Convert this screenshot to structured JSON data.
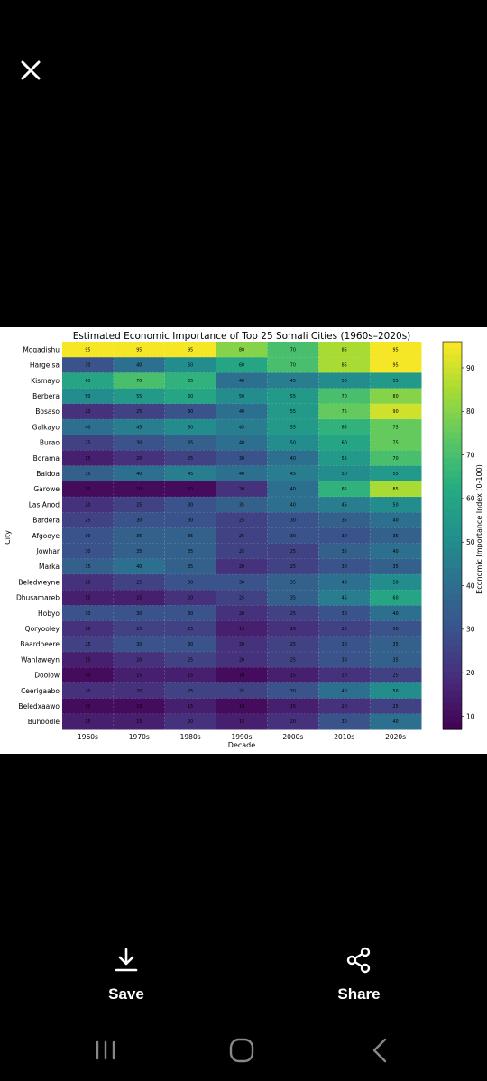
{
  "viewer": {
    "close_icon": "close-icon",
    "actions": [
      {
        "label": "Save",
        "icon": "download-icon"
      },
      {
        "label": "Share",
        "icon": "share-icon"
      }
    ]
  },
  "navbar": {
    "recents_icon": "recents-icon",
    "home_icon": "home-icon",
    "back_icon": "back-icon"
  },
  "chart_data": {
    "type": "heatmap",
    "title": "Estimated Economic Importance of Top 25 Somali Cities (1960s–2020s)",
    "xlabel": "Decade",
    "ylabel": "City",
    "colorbar_label": "Economic Importance Index (0-100)",
    "colorbar_ticks": [
      10,
      20,
      30,
      40,
      50,
      60,
      70,
      80,
      90
    ],
    "colormap": "viridis",
    "vmin": 7,
    "vmax": 96,
    "x": [
      "1960s",
      "1970s",
      "1980s",
      "1990s",
      "2000s",
      "2010s",
      "2020s"
    ],
    "y": [
      "Mogadishu",
      "Hargeisa",
      "Kismayo",
      "Berbera",
      "Bosaso",
      "Galkayo",
      "Burao",
      "Borama",
      "Baidoa",
      "Garowe",
      "Las Anod",
      "Bardera",
      "Afgooye",
      "Jowhar",
      "Marka",
      "Beledweyne",
      "Dhusamareb",
      "Hobyo",
      "Qoryooley",
      "Baardheere",
      "Wanlaweyn",
      "Doolow",
      "Ceerigaabo",
      "Beledxaawo",
      "Buhoodle"
    ],
    "values": [
      [
        95,
        95,
        95,
        80,
        70,
        85,
        95
      ],
      [
        30,
        40,
        50,
        60,
        70,
        85,
        95
      ],
      [
        60,
        70,
        65,
        40,
        45,
        50,
        55
      ],
      [
        50,
        55,
        60,
        50,
        55,
        70,
        80
      ],
      [
        20,
        25,
        30,
        40,
        55,
        75,
        90
      ],
      [
        40,
        45,
        50,
        45,
        55,
        65,
        75
      ],
      [
        25,
        30,
        35,
        40,
        50,
        60,
        75
      ],
      [
        15,
        20,
        25,
        30,
        40,
        55,
        70
      ],
      [
        35,
        40,
        45,
        40,
        45,
        50,
        55
      ],
      [
        10,
        10,
        10,
        20,
        40,
        65,
        85
      ],
      [
        20,
        25,
        30,
        35,
        40,
        45,
        50
      ],
      [
        25,
        30,
        30,
        25,
        30,
        35,
        40
      ],
      [
        30,
        35,
        35,
        25,
        30,
        30,
        35
      ],
      [
        30,
        35,
        35,
        25,
        25,
        35,
        40
      ],
      [
        35,
        40,
        35,
        20,
        25,
        30,
        35
      ],
      [
        20,
        25,
        30,
        30,
        35,
        40,
        50
      ],
      [
        15,
        15,
        20,
        25,
        35,
        45,
        60
      ],
      [
        30,
        30,
        30,
        20,
        25,
        30,
        40
      ],
      [
        20,
        25,
        25,
        15,
        20,
        25,
        30
      ],
      [
        25,
        30,
        30,
        20,
        25,
        30,
        35
      ],
      [
        15,
        20,
        25,
        20,
        25,
        30,
        35
      ],
      [
        10,
        15,
        15,
        10,
        15,
        20,
        25
      ],
      [
        20,
        20,
        25,
        25,
        30,
        40,
        50
      ],
      [
        10,
        10,
        15,
        10,
        15,
        20,
        25
      ],
      [
        15,
        15,
        20,
        15,
        20,
        30,
        40
      ]
    ]
  }
}
